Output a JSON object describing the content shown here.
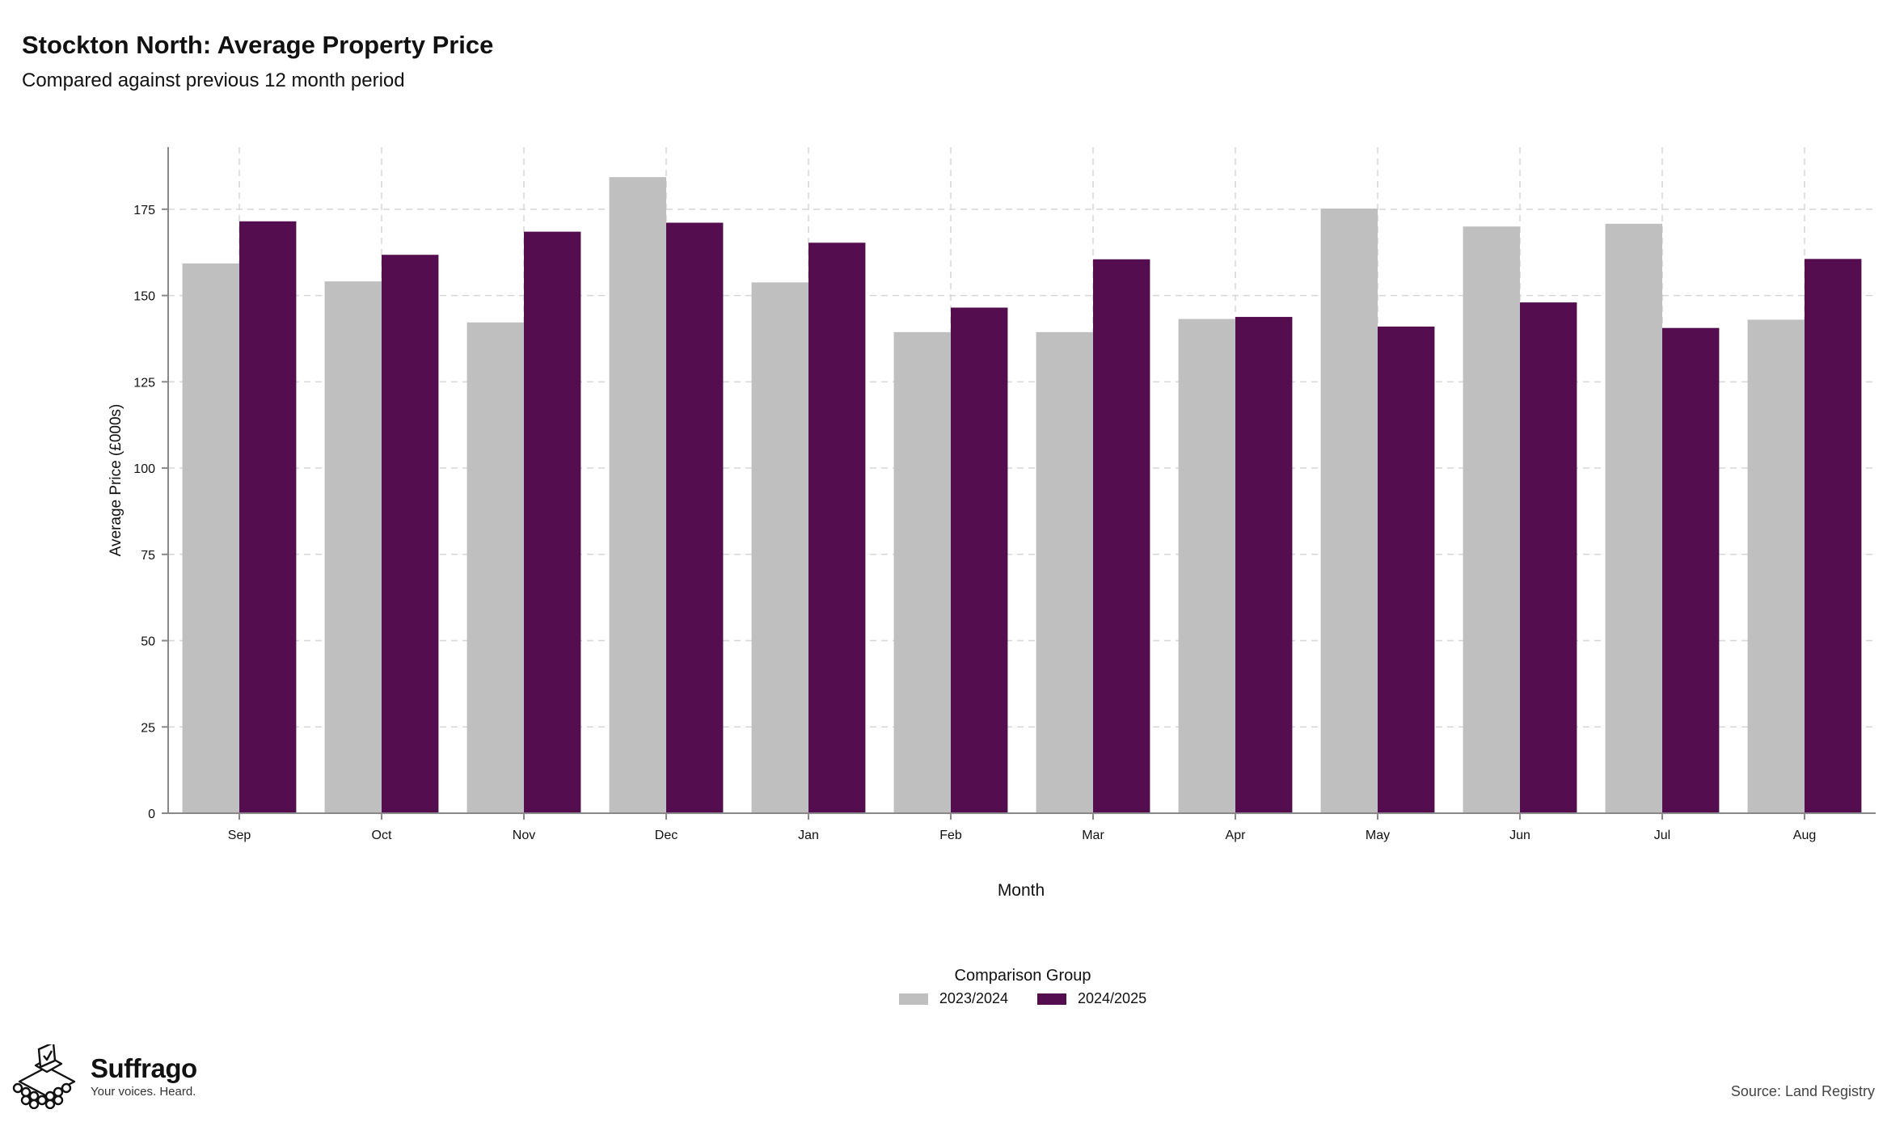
{
  "chart_data": {
    "type": "bar",
    "title": "Stockton North: Average Property Price",
    "subtitle": "Compared against previous 12 month period",
    "xlabel": "Month",
    "ylabel": "Average Price (£000s)",
    "categories": [
      "Sep",
      "Oct",
      "Nov",
      "Dec",
      "Jan",
      "Feb",
      "Mar",
      "Apr",
      "May",
      "Jun",
      "Jul",
      "Aug"
    ],
    "series": [
      {
        "name": "2023/2024",
        "color": "#bfbfbf",
        "values": [
          159.3,
          154.1,
          142.2,
          184.3,
          153.8,
          139.4,
          139.4,
          143.2,
          175.2,
          170.0,
          170.8,
          143.0
        ]
      },
      {
        "name": "2024/2025",
        "color": "#540d4f",
        "values": [
          171.5,
          161.8,
          168.5,
          171.1,
          165.3,
          146.5,
          160.5,
          143.8,
          141.0,
          148.0,
          140.6,
          160.6
        ]
      }
    ],
    "ylim": [
      0,
      193
    ],
    "yticks": [
      0,
      25,
      50,
      75,
      100,
      125,
      150,
      175
    ],
    "grid": true,
    "legend": {
      "title": "Comparison Group",
      "position": "bottom"
    }
  },
  "branding": {
    "name": "Suffrago",
    "tagline": "Your voices. Heard.",
    "logo_icon": "ballot-box-icon"
  },
  "source": "Source: Land Registry"
}
